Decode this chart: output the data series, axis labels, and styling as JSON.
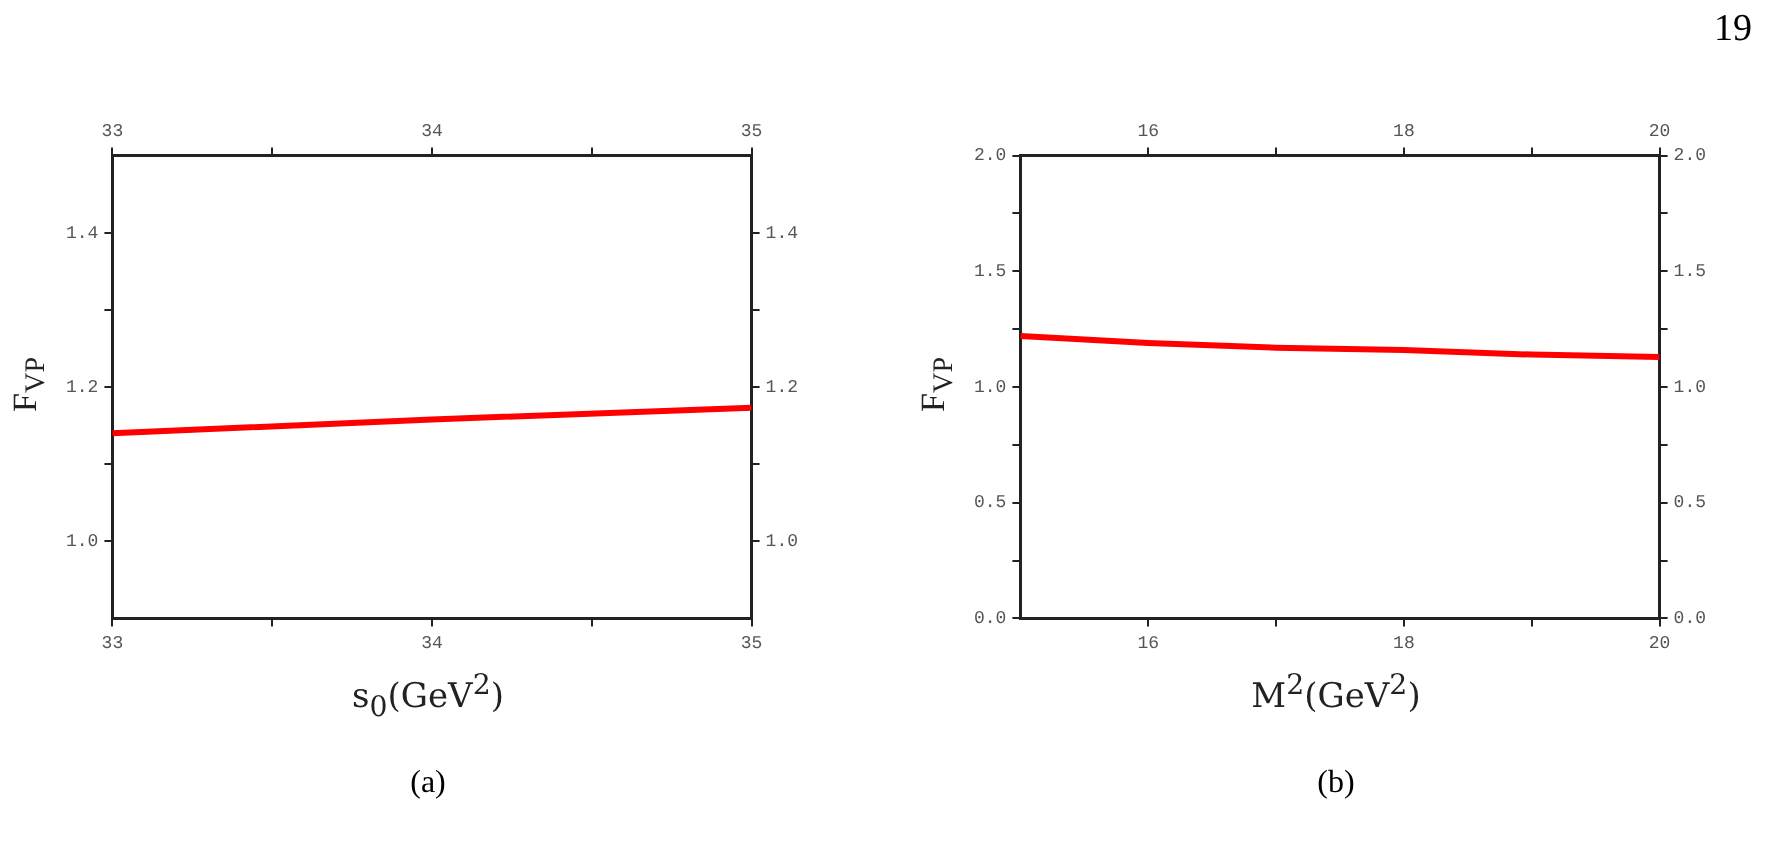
{
  "chart_data": [
    {
      "type": "line",
      "xlabel": "s$_{0}$(GeV$^{2}$)",
      "ylabel": "F$_{VP}$",
      "annotations": [
        "(a)",
        "19"
      ],
      "series": [
        {
          "color": "#ff0000",
          "x": [
            33,
            34,
            35
          ],
          "values": [
            1.14,
            1.158,
            1.173
          ]
        }
      ],
      "xlim": [
        33,
        35
      ],
      "xticks": [
        33,
        {
          "value": 33.5,
          "label": null
        },
        34,
        {
          "value": 34.5,
          "label": null
        },
        35
      ],
      "x2lim": [
        33,
        35
      ],
      "x2ticks": [
        33,
        {
          "value": 33.5,
          "label": null
        },
        34,
        {
          "value": 34.5,
          "label": null
        },
        35
      ],
      "ylim": [
        0.9,
        1.5
      ],
      "yticks": [
        {
          "value": 1.0,
          "label": "1.0"
        },
        {
          "value": 1.1,
          "label": null
        },
        {
          "value": 1.2,
          "label": "1.2"
        },
        {
          "value": 1.3,
          "label": null
        },
        {
          "value": 1.4,
          "label": "1.4"
        }
      ],
      "y2lim": [
        0.9,
        1.5
      ],
      "y2ticks": [
        {
          "value": 1.0,
          "label": "1.0"
        },
        {
          "value": 1.1,
          "label": null
        },
        {
          "value": 1.2,
          "label": "1.2"
        },
        {
          "value": 1.3,
          "label": null
        },
        {
          "value": 1.4,
          "label": "1.4"
        }
      ],
      "grid": false,
      "legend": false,
      "marker": "none",
      "line_style": "solid"
    },
    {
      "type": "line",
      "xlabel": "M$^{2}$(GeV$^{2}$)",
      "ylabel": "F$_{VP}$",
      "annotations": [
        "(b)"
      ],
      "series": [
        {
          "color": "#ff0000",
          "x": [
            15,
            16,
            17,
            18,
            19,
            20
          ],
          "values": [
            1.22,
            1.19,
            1.17,
            1.16,
            1.14,
            1.13
          ]
        }
      ],
      "xlim": [
        15,
        20
      ],
      "xticks": [
        16,
        {
          "value": 17,
          "label": null
        },
        18,
        {
          "value": 19,
          "label": null
        },
        20
      ],
      "x2lim": [
        15,
        20
      ],
      "x2ticks": [
        16,
        {
          "value": 17,
          "label": null
        },
        18,
        {
          "value": 19,
          "label": null
        },
        20
      ],
      "ylim": [
        0,
        2
      ],
      "yticks": [
        {
          "value": 0,
          "label": "0.0"
        },
        {
          "value": 0.25,
          "label": null
        },
        {
          "value": 0.5,
          "label": "0.5"
        },
        {
          "value": 0.75,
          "label": null
        },
        {
          "value": 1,
          "label": "1.0"
        },
        {
          "value": 1.25,
          "label": null
        },
        {
          "value": 1.5,
          "label": "1.5"
        },
        {
          "value": 1.75,
          "label": null
        },
        {
          "value": 2,
          "label": "2.0"
        }
      ],
      "y2lim": [
        0,
        2
      ],
      "y2ticks": [
        {
          "value": 0,
          "label": "0.0"
        },
        {
          "value": 0.25,
          "label": null
        },
        {
          "value": 0.5,
          "label": "0.5"
        },
        {
          "value": 0.75,
          "label": null
        },
        {
          "value": 1,
          "label": "1.0"
        },
        {
          "value": 1.25,
          "label": null
        },
        {
          "value": 1.5,
          "label": "1.5"
        },
        {
          "value": 1.75,
          "label": null
        },
        {
          "value": 2,
          "label": "2.0"
        }
      ],
      "grid": false,
      "legend": false,
      "marker": "none",
      "line_style": "solid"
    }
  ]
}
